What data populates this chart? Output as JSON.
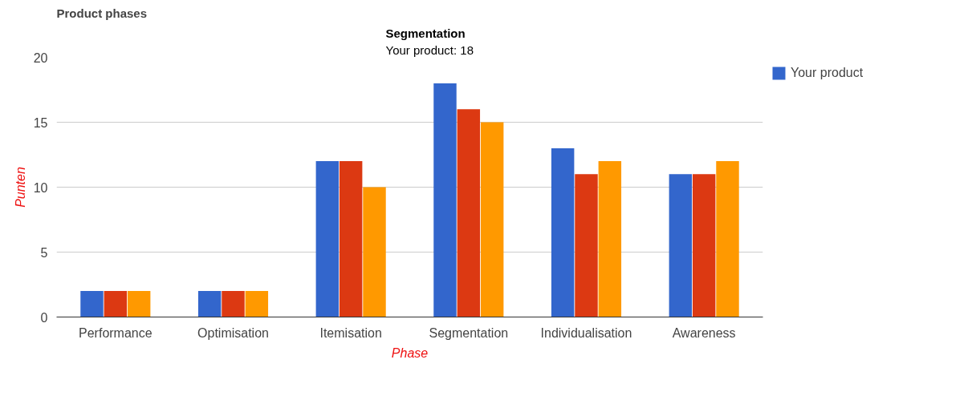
{
  "chart_data": {
    "type": "bar",
    "title": "Product phases",
    "xlabel": "Phase",
    "ylabel": "Punten",
    "categories": [
      "Performance",
      "Optimisation",
      "Itemisation",
      "Segmentation",
      "Individualisation",
      "Awareness"
    ],
    "series": [
      {
        "name": "Your product",
        "color": "#3366cc",
        "values": [
          2,
          2,
          12,
          18,
          13,
          11
        ]
      },
      {
        "color": "#dc3912",
        "values": [
          2,
          2,
          12,
          16,
          11,
          11
        ]
      },
      {
        "color": "#ff9900",
        "values": [
          2,
          2,
          10,
          15,
          12,
          12
        ]
      }
    ],
    "annotations": [
      "Segmentation",
      "Your product: 18"
    ],
    "ylim": [
      0,
      20
    ],
    "yticks": [
      0,
      5,
      10,
      15,
      20
    ],
    "grid": "y",
    "legend": "top right"
  }
}
